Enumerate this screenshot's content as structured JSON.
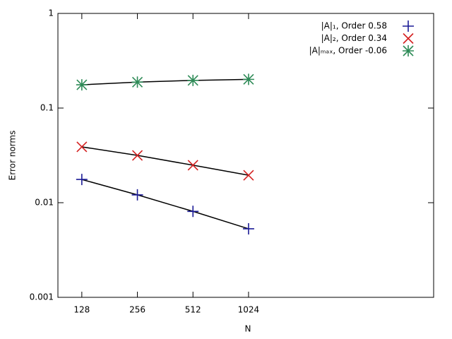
{
  "chart_data": {
    "type": "line",
    "xlabel": "N",
    "ylabel": "Error norms",
    "x": [
      128,
      256,
      512,
      1024
    ],
    "xscale": "log",
    "yscale": "log",
    "xlim": [
      95,
      10300
    ],
    "ylim": [
      0.001,
      1
    ],
    "xticks": [
      128,
      256,
      512,
      1024
    ],
    "yticks": [
      0.001,
      0.01,
      0.1,
      1
    ],
    "legend": "upper right",
    "series": [
      {
        "name": "|A|₁, Order 0.58",
        "color": "#1c1c96",
        "marker": "plus",
        "values": [
          0.0176,
          0.0121,
          0.0081,
          0.0053
        ]
      },
      {
        "name": "|A|₂, Order 0.34",
        "color": "#d42020",
        "marker": "cross",
        "values": [
          0.0389,
          0.0316,
          0.0249,
          0.0195
        ]
      },
      {
        "name": "|A|ₘₐₓ, Order -0.06",
        "color": "#2e8b57",
        "marker": "star",
        "values": [
          0.176,
          0.188,
          0.196,
          0.201
        ]
      }
    ]
  }
}
